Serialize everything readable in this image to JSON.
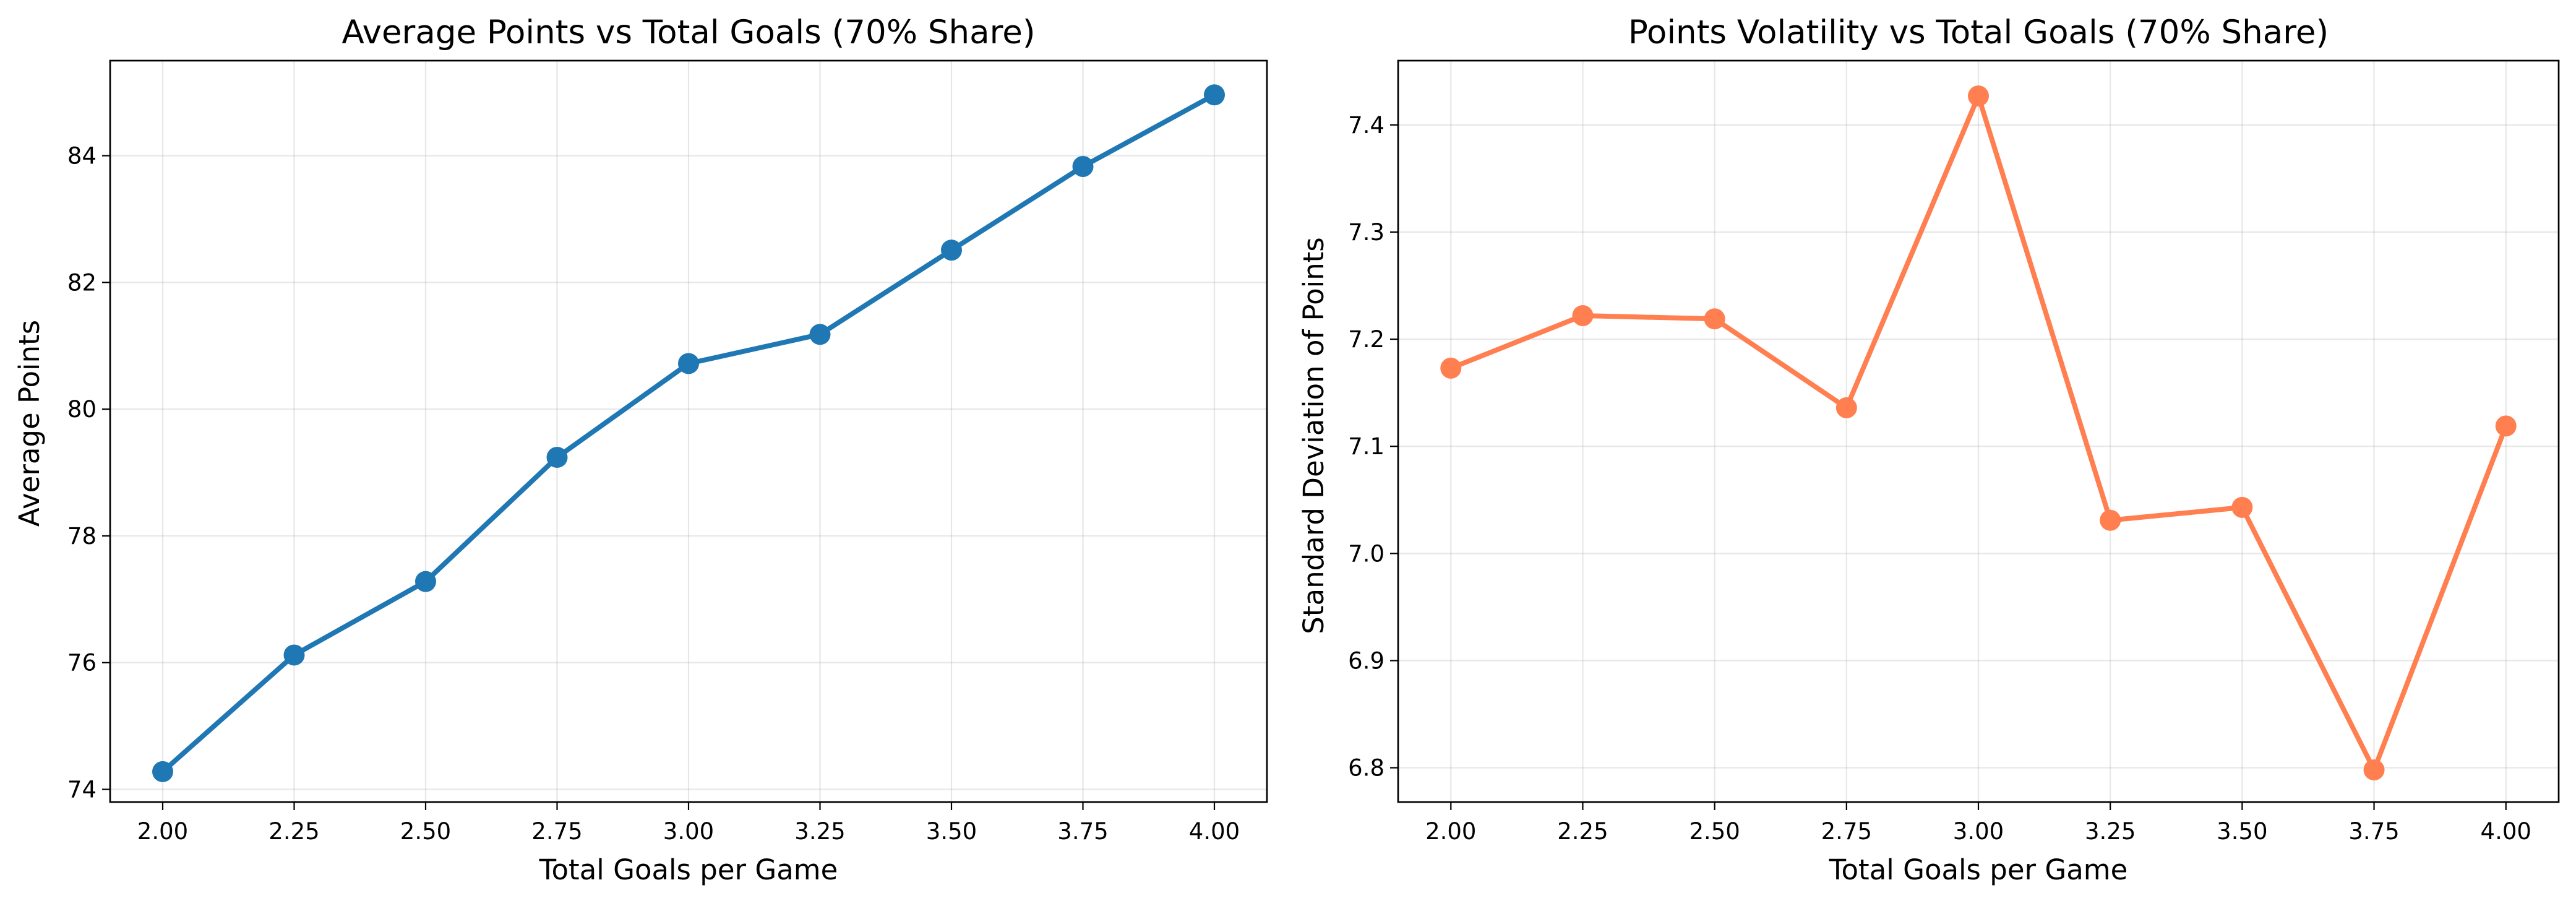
{
  "chart_data": [
    {
      "type": "line",
      "title": "Average Points vs Total Goals (70% Share)",
      "xlabel": "Total Goals per Game",
      "ylabel": "Average Points",
      "x": [
        2.0,
        2.25,
        2.5,
        2.75,
        3.0,
        3.25,
        3.5,
        3.75,
        4.0
      ],
      "x_ticks": [
        "2.00",
        "2.25",
        "2.50",
        "2.75",
        "3.00",
        "3.25",
        "3.50",
        "3.75",
        "4.00"
      ],
      "y_ticks": [
        "74",
        "76",
        "78",
        "80",
        "82",
        "84"
      ],
      "xlim": [
        1.9,
        4.1
      ],
      "ylim": [
        73.8,
        85.5
      ],
      "grid": true,
      "series": [
        {
          "color": "#1f77b4",
          "marker": "circle",
          "values": [
            74.28,
            76.12,
            77.28,
            79.24,
            80.72,
            81.18,
            82.51,
            83.83,
            84.96
          ]
        }
      ]
    },
    {
      "type": "line",
      "title": "Points Volatility vs Total Goals (70% Share)",
      "xlabel": "Total Goals per Game",
      "ylabel": "Standard Deviation of Points",
      "x": [
        2.0,
        2.25,
        2.5,
        2.75,
        3.0,
        3.25,
        3.5,
        3.75,
        4.0
      ],
      "x_ticks": [
        "2.00",
        "2.25",
        "2.50",
        "2.75",
        "3.00",
        "3.25",
        "3.50",
        "3.75",
        "4.00"
      ],
      "y_ticks": [
        "6.8",
        "6.9",
        "7.0",
        "7.1",
        "7.2",
        "7.3",
        "7.4"
      ],
      "xlim": [
        1.9,
        4.1
      ],
      "ylim": [
        6.768,
        7.46
      ],
      "grid": true,
      "series": [
        {
          "color": "#ff7f50",
          "marker": "circle",
          "values": [
            7.173,
            7.222,
            7.219,
            7.136,
            7.427,
            7.031,
            7.043,
            6.798,
            7.119
          ]
        }
      ]
    }
  ]
}
